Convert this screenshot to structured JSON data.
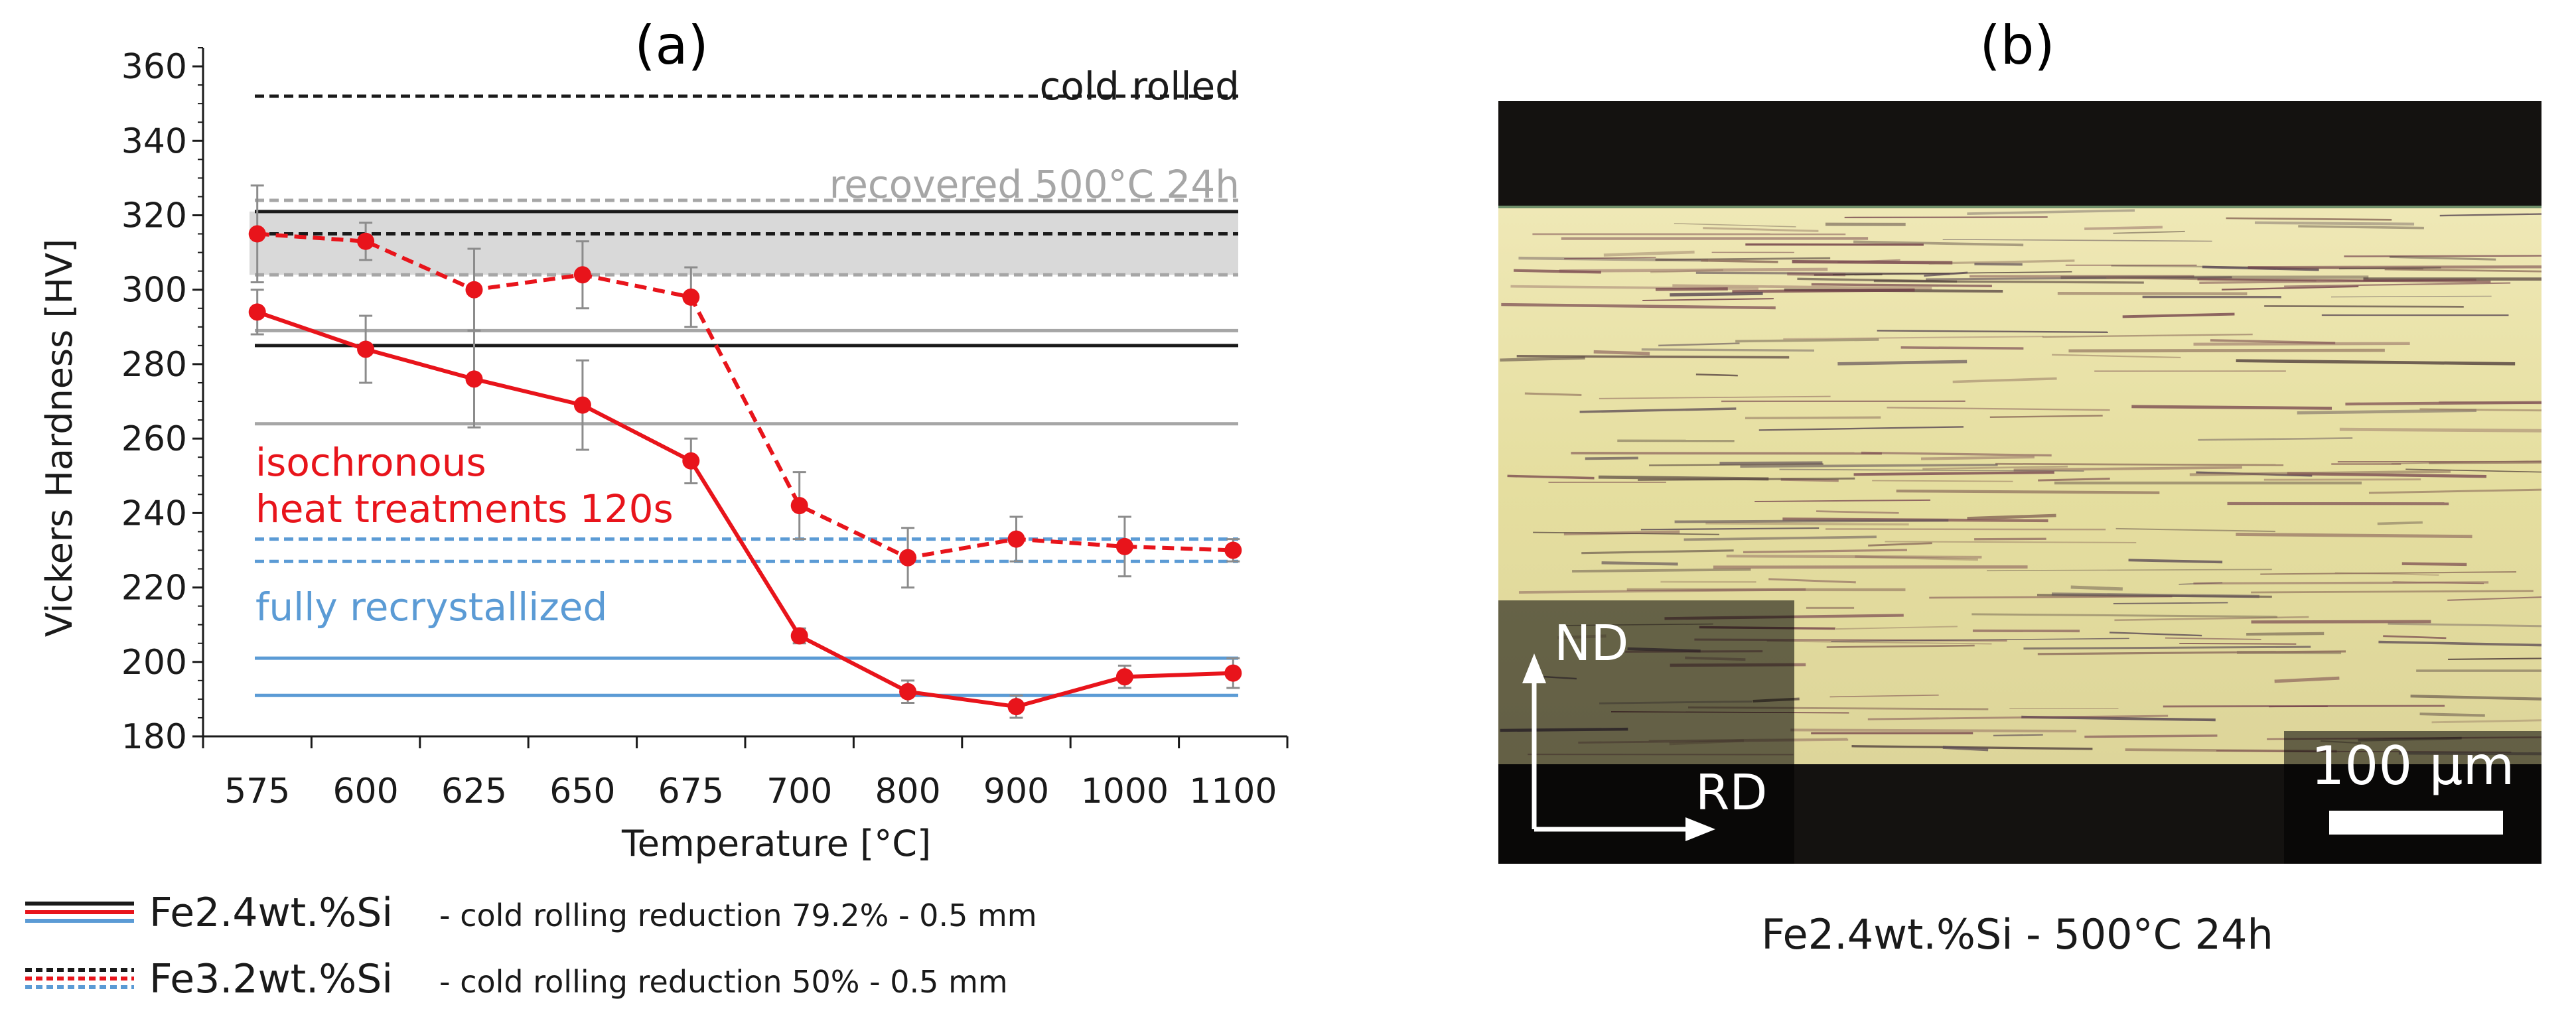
{
  "panel_a": {
    "label": "(a)"
  },
  "panel_b": {
    "label": "(b)",
    "caption": "Fe2.4wt.%Si - 500°C 24h",
    "axis_nd": "ND",
    "axis_rd": "RD",
    "scale_bar": "100 µm"
  },
  "legend": {
    "items": [
      {
        "name": "Fe2.4wt.%Si",
        "desc": "- cold rolling reduction 79.2% - 0.5 mm",
        "line_style": "solid"
      },
      {
        "name": "Fe3.2wt.%Si",
        "desc": "- cold rolling reduction 50% - 0.5 mm",
        "line_style": "dashed"
      }
    ],
    "swatch_colors": [
      "#1a1a1a",
      "#e8141b",
      "#5b9bd5"
    ]
  },
  "colors": {
    "red": "#e8141b",
    "black": "#1a1a1a",
    "gray": "#a6a6a6",
    "blue": "#5b9bd5",
    "band": "#d9d9d9",
    "micro_top": "#141210",
    "micro_base": "#e6dfa6"
  },
  "chart_data": {
    "type": "line",
    "title": "(a)",
    "xlabel": "Temperature [°C]",
    "ylabel": "Vickers Hardness [HV]",
    "categories": [
      "575",
      "600",
      "625",
      "650",
      "675",
      "700",
      "800",
      "900",
      "1000",
      "1100"
    ],
    "ylim": [
      180,
      365
    ],
    "yticks": [
      180,
      200,
      220,
      240,
      260,
      280,
      300,
      320,
      340,
      360
    ],
    "series": [
      {
        "name": "Fe2.4wt.%Si isochronous heat treatments 120s",
        "style": "solid",
        "color": "#e8141b",
        "values": [
          294,
          284,
          276,
          269,
          254,
          207,
          192,
          188,
          196,
          197
        ],
        "errors": [
          6,
          9,
          13,
          12,
          6,
          2,
          3,
          3,
          3,
          4
        ]
      },
      {
        "name": "Fe3.2wt.%Si isochronous heat treatments 120s",
        "style": "dashed",
        "color": "#e8141b",
        "values": [
          315,
          313,
          300,
          304,
          298,
          242,
          228,
          233,
          231,
          230
        ],
        "errors": [
          13,
          5,
          11,
          9,
          8,
          9,
          8,
          6,
          8,
          3
        ]
      }
    ],
    "reference_lines": [
      {
        "label": "cold rolled",
        "alloy": "Fe3.2wt.%Si",
        "value": 352,
        "style": "dashed",
        "color": "#1a1a1a"
      },
      {
        "label": "cold rolled",
        "alloy": "Fe2.4wt.%Si",
        "value": 321,
        "style": "solid",
        "color": "#1a1a1a"
      },
      {
        "label": "",
        "alloy": "Fe3.2wt.%Si",
        "value": 315,
        "style": "dashed",
        "color": "#1a1a1a"
      },
      {
        "label": "",
        "alloy": "Fe2.4wt.%Si",
        "value": 285,
        "style": "solid",
        "color": "#1a1a1a"
      },
      {
        "label": "recovered 500°C 24h",
        "alloy": "Fe3.2wt.%Si",
        "value": 324,
        "style": "dashed",
        "color": "#a6a6a6"
      },
      {
        "label": "",
        "alloy": "Fe3.2wt.%Si",
        "value": 304,
        "style": "dashed",
        "color": "#a6a6a6"
      },
      {
        "label": "",
        "alloy": "Fe2.4wt.%Si",
        "value": 289,
        "style": "solid",
        "color": "#a6a6a6"
      },
      {
        "label": "",
        "alloy": "Fe2.4wt.%Si",
        "value": 264,
        "style": "solid",
        "color": "#a6a6a6"
      },
      {
        "label": "fully recrystallized",
        "alloy": "Fe3.2wt.%Si",
        "value": 233,
        "style": "dashed",
        "color": "#5b9bd5"
      },
      {
        "label": "",
        "alloy": "Fe3.2wt.%Si",
        "value": 227,
        "style": "dashed",
        "color": "#5b9bd5"
      },
      {
        "label": "",
        "alloy": "Fe2.4wt.%Si",
        "value": 201,
        "style": "solid",
        "color": "#5b9bd5"
      },
      {
        "label": "",
        "alloy": "Fe2.4wt.%Si",
        "value": 191,
        "style": "solid",
        "color": "#5b9bd5"
      }
    ],
    "bands": [
      {
        "from": 304,
        "to": 321,
        "color": "#d9d9d9"
      }
    ],
    "annotations": [
      {
        "text": "cold rolled",
        "color": "#1a1a1a"
      },
      {
        "text": "recovered 500°C 24h",
        "color": "#a6a6a6"
      },
      {
        "text": "isochronous",
        "color": "#e8141b"
      },
      {
        "text": "heat treatments 120s",
        "color": "#e8141b"
      },
      {
        "text": "fully recrystallized",
        "color": "#5b9bd5"
      }
    ]
  }
}
